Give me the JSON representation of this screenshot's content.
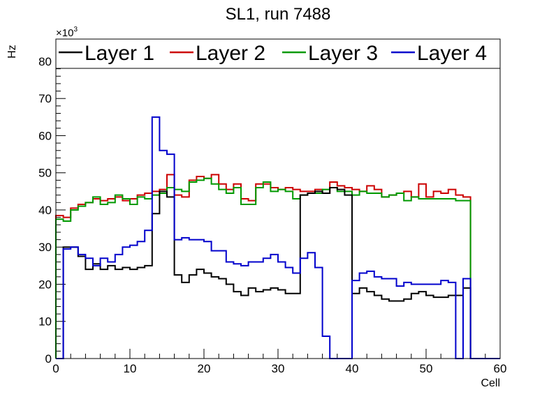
{
  "chart_data": {
    "type": "histogram-step",
    "title": "SL1, run 7488",
    "xlabel": "Cell",
    "ylabel": "Hz",
    "y_multiplier_label": "×10",
    "y_multiplier_exponent": "3",
    "xlim": [
      0,
      60
    ],
    "ylim": [
      0,
      86
    ],
    "x_ticks": [
      0,
      10,
      20,
      30,
      40,
      50,
      60
    ],
    "y_ticks": [
      0,
      10,
      20,
      30,
      40,
      50,
      60,
      70,
      80
    ],
    "bin_width": 1,
    "legend_position": "top",
    "series": [
      {
        "name": "Layer 1",
        "color": "#000000",
        "values": [
          0,
          30,
          30,
          27.5,
          24,
          25.5,
          24,
          25,
          24,
          24.5,
          24,
          24.5,
          25,
          39,
          45,
          43.5,
          22.5,
          20.5,
          22.5,
          24,
          23,
          22,
          21.5,
          20,
          18,
          17,
          19,
          18,
          18.5,
          19,
          18.5,
          17.5,
          17.5,
          44,
          44.5,
          45,
          44.5,
          46,
          45.5,
          44,
          17.5,
          19,
          18,
          17,
          16,
          15.5,
          15.5,
          16,
          17.5,
          18,
          17,
          16.5,
          16.5,
          17,
          17,
          19,
          0,
          0,
          0,
          0
        ]
      },
      {
        "name": "Layer 2",
        "color": "#cc0000",
        "values": [
          38.5,
          38,
          40.5,
          41.5,
          42,
          43,
          42.5,
          43,
          43.5,
          42.5,
          43,
          44,
          44.5,
          45,
          45.5,
          49.5,
          44,
          43.5,
          48,
          49,
          48.5,
          49.5,
          47,
          45.5,
          47,
          43,
          42.5,
          47,
          47,
          46,
          45.5,
          46,
          45.5,
          45,
          45,
          45.5,
          44.5,
          47.5,
          46.5,
          46,
          45.5,
          45,
          46.5,
          45.5,
          43.5,
          44,
          44.5,
          45,
          43.5,
          47,
          43.5,
          45,
          44.5,
          45.5,
          44,
          43.5,
          0,
          0,
          0,
          0
        ]
      },
      {
        "name": "Layer 3",
        "color": "#009900",
        "values": [
          37.5,
          37,
          40,
          41,
          42,
          43.5,
          41.5,
          42,
          44,
          43,
          41.5,
          43.5,
          43,
          44,
          44.5,
          46,
          45.5,
          45,
          47.5,
          48,
          48.5,
          47,
          45.5,
          44.5,
          46,
          41.5,
          41.5,
          46,
          47.5,
          45,
          45.5,
          45,
          43,
          44,
          44.5,
          44.5,
          45.5,
          46,
          45,
          45,
          44,
          45,
          44.5,
          44.5,
          43.5,
          44,
          44.5,
          42.5,
          43.5,
          43,
          43,
          43,
          43,
          43,
          42.5,
          42.5,
          0,
          0,
          0,
          0
        ]
      },
      {
        "name": "Layer 4",
        "color": "#0000cc",
        "values": [
          0,
          29.5,
          30,
          28,
          27,
          25,
          27,
          26,
          28,
          30,
          30.5,
          31.5,
          34.5,
          65,
          56,
          55,
          32,
          32.5,
          32,
          32,
          31.5,
          29,
          29,
          26,
          25.5,
          25,
          26,
          26,
          27,
          28,
          26,
          24.5,
          23,
          27,
          28.5,
          24.5,
          6,
          0,
          0,
          0,
          21,
          23,
          23.5,
          22,
          21.5,
          21.5,
          19.5,
          20.5,
          20,
          20,
          20,
          20,
          21,
          20.5,
          0,
          21.5,
          0,
          0,
          0,
          0
        ]
      }
    ]
  }
}
